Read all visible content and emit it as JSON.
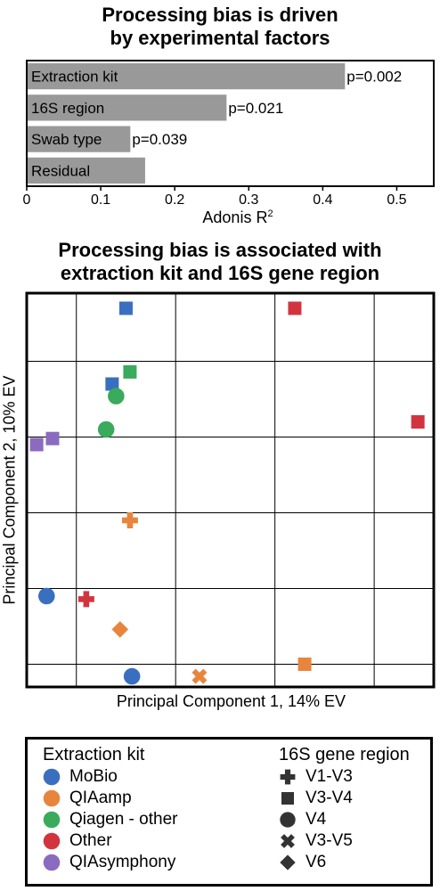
{
  "chart_data": [
    {
      "type": "bar",
      "orientation": "horizontal",
      "title": [
        "Processing bias is driven",
        "by experimental factors"
      ],
      "xlabel": "Adonis R",
      "xlabel_sup": "2",
      "xlim": [
        0,
        0.55
      ],
      "xticks": [
        "0",
        "0.1",
        "0.2",
        "0.3",
        "0.4",
        "0.5"
      ],
      "categories": [
        "Extraction kit",
        "16S region",
        "Swab type",
        "Residual"
      ],
      "values": [
        0.43,
        0.27,
        0.14,
        0.16
      ],
      "annotations": [
        "p=0.002",
        "p=0.021",
        "p=0.039",
        ""
      ],
      "bar_color": "#999999"
    },
    {
      "type": "scatter",
      "title": [
        "Processing bias is associated with",
        "extraction kit and 16S gene region"
      ],
      "xlabel": "Principal Component 1, 14% EV",
      "ylabel": "Principal Component 2, 10% EV",
      "xlim": [
        -0.25,
        1.8
      ],
      "ylim": [
        -0.4,
        2.2
      ],
      "grid": true,
      "points": [
        {
          "x": 0.25,
          "y": 2.1,
          "kit": "MoBio",
          "region": "V3-V4"
        },
        {
          "x": 1.1,
          "y": 2.1,
          "kit": "Other",
          "region": "V3-V4"
        },
        {
          "x": 0.18,
          "y": 1.6,
          "kit": "MoBio",
          "region": "V3-V4"
        },
        {
          "x": 0.27,
          "y": 1.68,
          "kit": "Qiagen - other",
          "region": "V3-V4"
        },
        {
          "x": 0.2,
          "y": 1.52,
          "kit": "Qiagen - other",
          "region": "V4"
        },
        {
          "x": 0.15,
          "y": 1.3,
          "kit": "Qiagen - other",
          "region": "V4"
        },
        {
          "x": -0.2,
          "y": 1.2,
          "kit": "QIAsymphony",
          "region": "V3-V4"
        },
        {
          "x": -0.12,
          "y": 1.24,
          "kit": "QIAsymphony",
          "region": "V3-V4"
        },
        {
          "x": 1.72,
          "y": 1.35,
          "kit": "Other",
          "region": "V3-V4"
        },
        {
          "x": 0.27,
          "y": 0.7,
          "kit": "QIAamp",
          "region": "V1-V3"
        },
        {
          "x": -0.15,
          "y": 0.2,
          "kit": "MoBio",
          "region": "V4"
        },
        {
          "x": 0.05,
          "y": 0.18,
          "kit": "Other",
          "region": "V1-V3"
        },
        {
          "x": 0.22,
          "y": -0.02,
          "kit": "QIAamp",
          "region": "V6"
        },
        {
          "x": 1.15,
          "y": -0.25,
          "kit": "QIAamp",
          "region": "V3-V4"
        },
        {
          "x": 0.28,
          "y": -0.33,
          "kit": "MoBio",
          "region": "V4"
        },
        {
          "x": 0.62,
          "y": -0.33,
          "kit": "QIAamp",
          "region": "V3-V5"
        }
      ],
      "legend": {
        "placement": "bottom",
        "kit_title": "Extraction kit",
        "region_title": "16S gene region",
        "kits": [
          {
            "name": "MoBio",
            "color": "#3a6fbf"
          },
          {
            "name": "QIAamp",
            "color": "#e8853d"
          },
          {
            "name": "Qiagen - other",
            "color": "#3aab5c"
          },
          {
            "name": "Other",
            "color": "#d2343f"
          },
          {
            "name": "QIAsymphony",
            "color": "#8b6bbf"
          }
        ],
        "regions": [
          {
            "name": "V1-V3",
            "shape": "plus"
          },
          {
            "name": "V3-V4",
            "shape": "square"
          },
          {
            "name": "V4",
            "shape": "circle"
          },
          {
            "name": "V3-V5",
            "shape": "x"
          },
          {
            "name": "V6",
            "shape": "diamond"
          }
        ]
      }
    }
  ]
}
